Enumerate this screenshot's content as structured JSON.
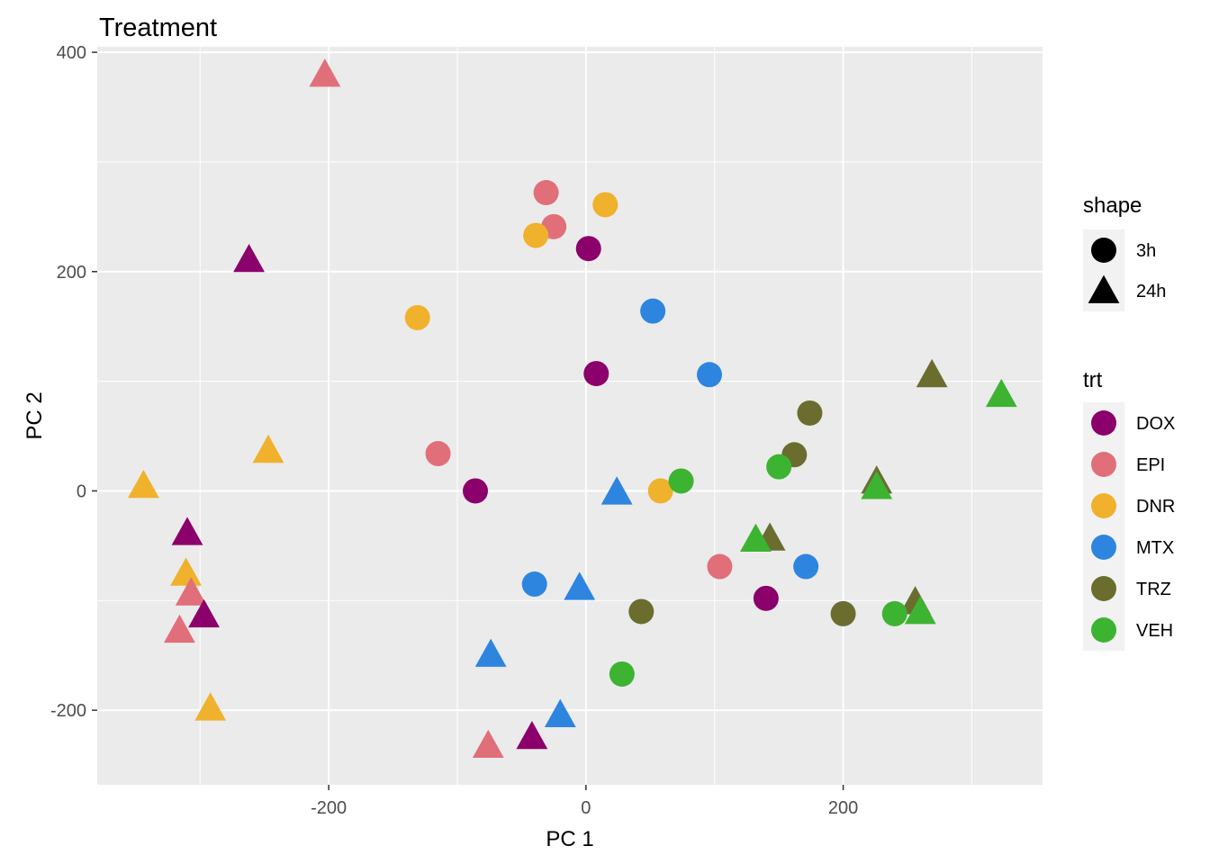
{
  "chart_data": {
    "type": "scatter",
    "title": "Treatment",
    "xlabel": "PC 1",
    "ylabel": "PC 2",
    "xlim": [
      -380,
      355
    ],
    "ylim": [
      -268,
      405
    ],
    "xticks": [
      -200,
      0,
      200
    ],
    "yticks": [
      -200,
      0,
      200,
      400
    ],
    "xtick_labels": [
      "-200",
      "0",
      "200"
    ],
    "ytick_labels": [
      "-200",
      "0",
      "200",
      "400"
    ],
    "grid": true,
    "legend_position": "right",
    "legends": {
      "shape": {
        "title": "shape",
        "items": [
          {
            "label": "3h",
            "shape": "circle"
          },
          {
            "label": "24h",
            "shape": "triangle"
          }
        ]
      },
      "color": {
        "title": "trt",
        "items": [
          {
            "label": "DOX",
            "color": "#8B006B"
          },
          {
            "label": "EPI",
            "color": "#E06F7A"
          },
          {
            "label": "DNR",
            "color": "#F0B12C"
          },
          {
            "label": "MTX",
            "color": "#2E85E0"
          },
          {
            "label": "TRZ",
            "color": "#6B6D2F"
          },
          {
            "label": "VEH",
            "color": "#3DB332"
          }
        ]
      }
    },
    "points": [
      {
        "trt": "EPI",
        "time": "24h",
        "x": -203,
        "y": 380
      },
      {
        "trt": "DOX",
        "time": "24h",
        "x": -262,
        "y": 211
      },
      {
        "trt": "DNR",
        "time": "24h",
        "x": -247,
        "y": 37
      },
      {
        "trt": "DNR",
        "time": "24h",
        "x": -344,
        "y": 5
      },
      {
        "trt": "DOX",
        "time": "24h",
        "x": -310,
        "y": -38
      },
      {
        "trt": "DNR",
        "time": "24h",
        "x": -311,
        "y": -75
      },
      {
        "trt": "EPI",
        "time": "24h",
        "x": -307,
        "y": -93
      },
      {
        "trt": "DOX",
        "time": "24h",
        "x": -297,
        "y": -113
      },
      {
        "trt": "EPI",
        "time": "24h",
        "x": -316,
        "y": -127
      },
      {
        "trt": "DNR",
        "time": "24h",
        "x": -292,
        "y": -198
      },
      {
        "trt": "MTX",
        "time": "24h",
        "x": -74,
        "y": -149
      },
      {
        "trt": "EPI",
        "time": "24h",
        "x": -76,
        "y": -232
      },
      {
        "trt": "DOX",
        "time": "24h",
        "x": -42,
        "y": -224
      },
      {
        "trt": "MTX",
        "time": "24h",
        "x": -20,
        "y": -204
      },
      {
        "trt": "MTX",
        "time": "24h",
        "x": -5,
        "y": -88
      },
      {
        "trt": "MTX",
        "time": "24h",
        "x": 24,
        "y": -1
      },
      {
        "trt": "TRZ",
        "time": "24h",
        "x": 143,
        "y": -43
      },
      {
        "trt": "VEH",
        "time": "24h",
        "x": 132,
        "y": -44
      },
      {
        "trt": "TRZ",
        "time": "24h",
        "x": 226,
        "y": 9
      },
      {
        "trt": "VEH",
        "time": "24h",
        "x": 226,
        "y": 4
      },
      {
        "trt": "TRZ",
        "time": "24h",
        "x": 256,
        "y": -101
      },
      {
        "trt": "VEH",
        "time": "24h",
        "x": 260,
        "y": -110
      },
      {
        "trt": "TRZ",
        "time": "24h",
        "x": 269,
        "y": 106
      },
      {
        "trt": "VEH",
        "time": "24h",
        "x": 323,
        "y": 88
      },
      {
        "trt": "EPI",
        "time": "3h",
        "x": -31,
        "y": 272
      },
      {
        "trt": "DNR",
        "time": "3h",
        "x": 15,
        "y": 261
      },
      {
        "trt": "EPI",
        "time": "3h",
        "x": -25,
        "y": 241
      },
      {
        "trt": "DNR",
        "time": "3h",
        "x": -39,
        "y": 233
      },
      {
        "trt": "DOX",
        "time": "3h",
        "x": 2,
        "y": 221
      },
      {
        "trt": "DNR",
        "time": "3h",
        "x": -131,
        "y": 158
      },
      {
        "trt": "MTX",
        "time": "3h",
        "x": 52,
        "y": 164
      },
      {
        "trt": "MTX",
        "time": "3h",
        "x": 96,
        "y": 106
      },
      {
        "trt": "DOX",
        "time": "3h",
        "x": 8,
        "y": 107
      },
      {
        "trt": "EPI",
        "time": "3h",
        "x": -115,
        "y": 34
      },
      {
        "trt": "DOX",
        "time": "3h",
        "x": -86,
        "y": 0
      },
      {
        "trt": "DNR",
        "time": "3h",
        "x": 58,
        "y": 0
      },
      {
        "trt": "VEH",
        "time": "3h",
        "x": 74,
        "y": 9
      },
      {
        "trt": "TRZ",
        "time": "3h",
        "x": 174,
        "y": 71
      },
      {
        "trt": "TRZ",
        "time": "3h",
        "x": 162,
        "y": 33
      },
      {
        "trt": "VEH",
        "time": "3h",
        "x": 150,
        "y": 22
      },
      {
        "trt": "EPI",
        "time": "3h",
        "x": 104,
        "y": -69
      },
      {
        "trt": "MTX",
        "time": "3h",
        "x": 171,
        "y": -69
      },
      {
        "trt": "MTX",
        "time": "3h",
        "x": -40,
        "y": -85
      },
      {
        "trt": "DOX",
        "time": "3h",
        "x": 140,
        "y": -98
      },
      {
        "trt": "TRZ",
        "time": "3h",
        "x": 43,
        "y": -110
      },
      {
        "trt": "TRZ",
        "time": "3h",
        "x": 200,
        "y": -112
      },
      {
        "trt": "VEH",
        "time": "3h",
        "x": 240,
        "y": -112
      },
      {
        "trt": "VEH",
        "time": "3h",
        "x": 28,
        "y": -167
      }
    ]
  }
}
